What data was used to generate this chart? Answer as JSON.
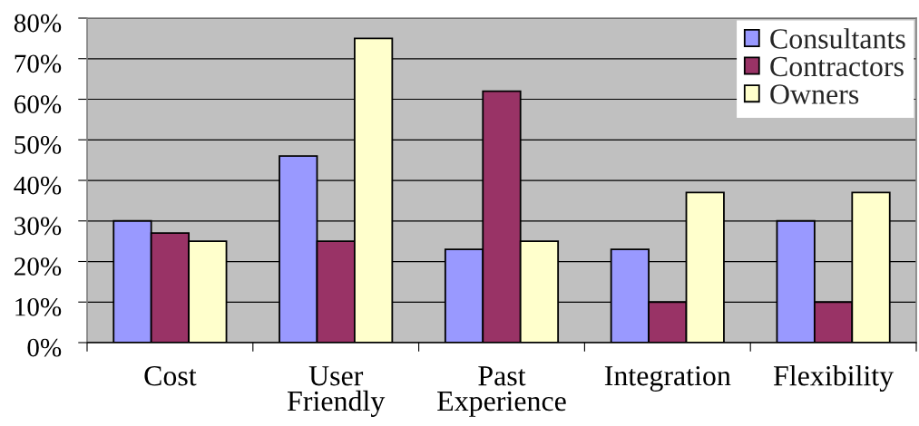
{
  "chart_data": {
    "type": "bar",
    "categories": [
      "Cost",
      "User\nFriendly",
      "Past\nExperience",
      "Integration",
      "Flexibility"
    ],
    "series": [
      {
        "name": "Consultants",
        "color": "#9999ff",
        "values": [
          30,
          46,
          23,
          23,
          30
        ]
      },
      {
        "name": "Contractors",
        "color": "#993366",
        "values": [
          27,
          25,
          62,
          10,
          10
        ]
      },
      {
        "name": "Owners",
        "color": "#ffffcc",
        "values": [
          25,
          75,
          25,
          37,
          37
        ]
      }
    ],
    "ylim": [
      0,
      80
    ],
    "yticks": [
      {
        "value": 0,
        "label": "0%"
      },
      {
        "value": 10,
        "label": "10%"
      },
      {
        "value": 20,
        "label": "20%"
      },
      {
        "value": 30,
        "label": "30%"
      },
      {
        "value": 40,
        "label": "40%"
      },
      {
        "value": 50,
        "label": "50%"
      },
      {
        "value": 60,
        "label": "60%"
      },
      {
        "value": 70,
        "label": "70%"
      },
      {
        "value": 80,
        "label": "80%"
      }
    ],
    "grid": "y",
    "legend": "top right"
  }
}
